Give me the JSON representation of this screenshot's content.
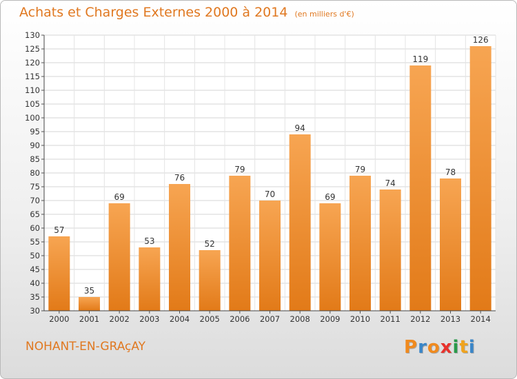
{
  "chart_data": {
    "type": "bar",
    "title": "Achats et Charges Externes 2000 à 2014",
    "subtitle": "(en milliers d'€)",
    "categories": [
      "2000",
      "2001",
      "2002",
      "2003",
      "2004",
      "2005",
      "2006",
      "2007",
      "2008",
      "2009",
      "2010",
      "2011",
      "2012",
      "2013",
      "2014"
    ],
    "values": [
      57,
      35,
      69,
      53,
      76,
      52,
      79,
      70,
      94,
      69,
      79,
      74,
      119,
      78,
      126
    ],
    "ylim": [
      30,
      130
    ],
    "yticks": [
      30,
      35,
      40,
      45,
      50,
      55,
      60,
      65,
      70,
      75,
      80,
      85,
      90,
      95,
      100,
      105,
      110,
      115,
      120,
      125,
      130
    ],
    "grid": true,
    "bar_color": "#f0922e"
  },
  "commune": "NOHANT-EN-GRAçAY",
  "logo": {
    "text": "Proxiti",
    "colors": [
      "#f08a1e",
      "#3a86c8",
      "#f08a1e",
      "#e8322c",
      "#2a9a4a",
      "#f0a31e",
      "#3a86c8"
    ]
  }
}
